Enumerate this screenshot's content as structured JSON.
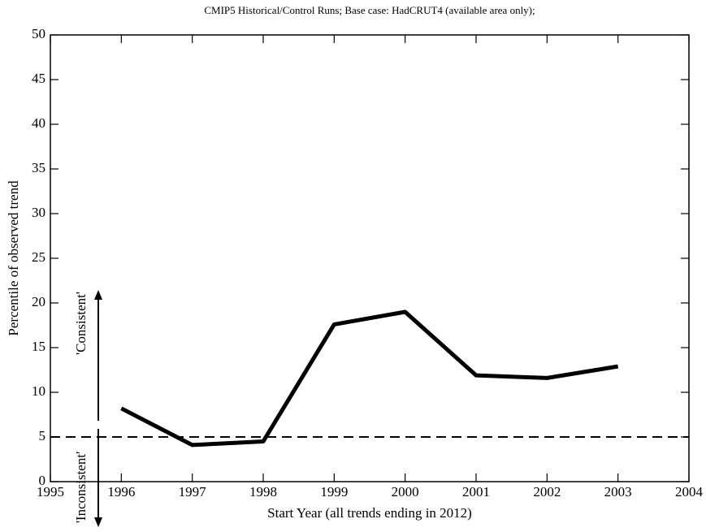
{
  "chart_data": {
    "type": "line",
    "title": "CMIP5 Historical/Control Runs; Base case: HadCRUT4 (available area only);",
    "x_label": "Start Year (all trends ending in 2012)",
    "y_label": "Percentile of observed trend",
    "x": [
      1996,
      1997,
      1998,
      1999,
      2000,
      2001,
      2002,
      2003
    ],
    "series": [
      {
        "name": "Percentile",
        "color": "#000000",
        "values": [
          8.2,
          4.1,
          4.5,
          17.6,
          19.0,
          11.9,
          11.6,
          12.9
        ]
      }
    ],
    "xlim": [
      1995,
      2004
    ],
    "xticks": [
      1995,
      1996,
      1997,
      1998,
      1999,
      2000,
      2001,
      2002,
      2003,
      2004
    ],
    "ylim": [
      0,
      50
    ],
    "yticks": [
      0,
      5,
      10,
      15,
      20,
      25,
      30,
      35,
      40,
      45,
      50
    ],
    "reference_line": 5,
    "annotations": [
      "'Consistent'",
      "'Inconsistent'"
    ]
  }
}
